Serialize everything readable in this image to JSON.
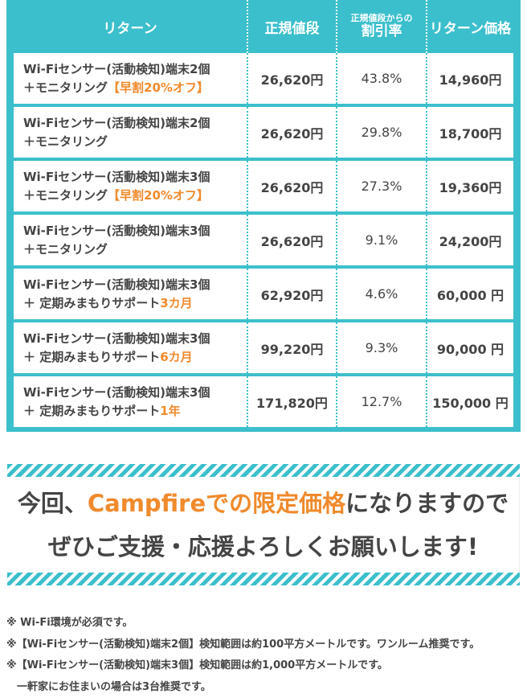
{
  "table": {
    "headers": {
      "return": "リターン",
      "regular_price": "正規値段",
      "discount_top": "正規値段からの",
      "discount_bottom": "割引率",
      "return_price": "リターン価格"
    },
    "rows": [
      {
        "line1": "Wi-Fiセンサー(活動検知)端末2個",
        "line2": "＋モニタリング",
        "highlight": "【早割20%オフ】",
        "regular": "26,620円",
        "discount": "43.8%",
        "price": "14,960円"
      },
      {
        "line1": "Wi-Fiセンサー(活動検知)端末2個",
        "line2": "＋モニタリング",
        "highlight": "",
        "regular": "26,620円",
        "discount": "29.8%",
        "price": "18,700円"
      },
      {
        "line1": "Wi-Fiセンサー(活動検知)端末3個",
        "line2": "＋モニタリング",
        "highlight": "【早割20%オフ】",
        "regular": "26,620円",
        "discount": "27.3%",
        "price": "19,360円"
      },
      {
        "line1": "Wi-Fiセンサー(活動検知)端末3個",
        "line2": "＋モニタリング",
        "highlight": "",
        "regular": "26,620円",
        "discount": "9.1%",
        "price": "24,200円"
      },
      {
        "line1": "Wi-Fiセンサー(活動検知)端末3個",
        "line2": "＋ 定期みまもりサポート",
        "highlight": "3カ月",
        "regular": "62,920円",
        "discount": "4.6%",
        "price": "60,000 円"
      },
      {
        "line1": "Wi-Fiセンサー(活動検知)端末3個",
        "line2": "＋ 定期みまもりサポート",
        "highlight": "6カ月",
        "regular": "99,220円",
        "discount": "9.3%",
        "price": "90,000 円"
      },
      {
        "line1": "Wi-Fiセンサー(活動検知)端末3個",
        "line2": "＋ 定期みまもりサポート",
        "highlight": "1年",
        "regular": "171,820円",
        "discount": "12.7%",
        "price": "150,000 円"
      }
    ]
  },
  "message": {
    "pre": "今回、",
    "highlight": "Campfireでの限定価格",
    "post": "になりますので",
    "line2": "ぜひご支援・応援よろしくお願いします!"
  },
  "notes": [
    "※ Wi-Fi環境が必須です。",
    "※【Wi-Fiセンサー(活動検知)端末2個】検知範囲は約100平方メートルです。ワンルーム推奨です。",
    "※【Wi-Fiセンサー(活動検知)端末3個】検知範囲は約1,000平方メートルです。",
    "　一軒家にお住まいの場合は3台推奨です。"
  ],
  "colors": {
    "teal": "#3cbfcc",
    "orange": "#f08a2c"
  }
}
